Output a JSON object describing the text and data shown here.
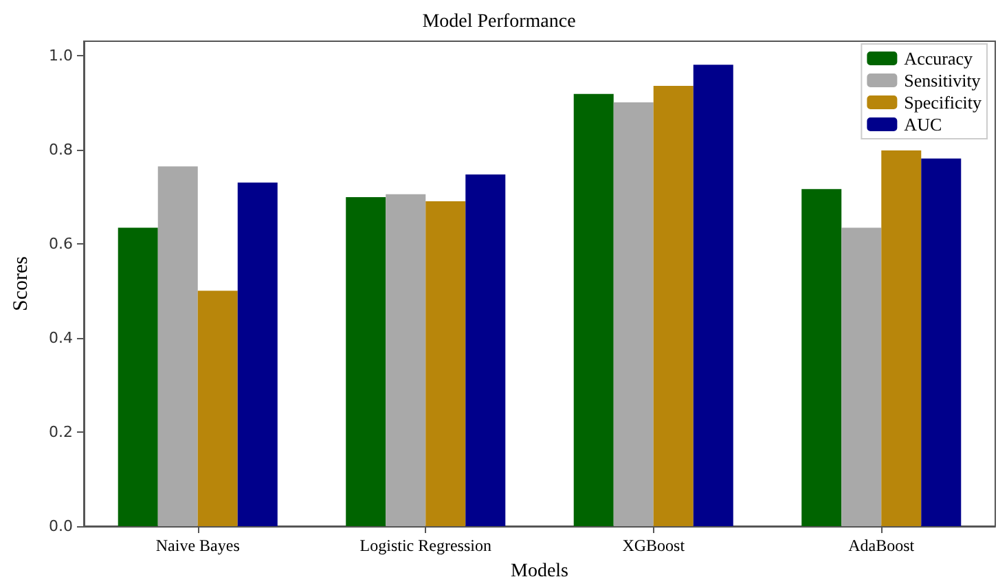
{
  "chart_data": {
    "type": "bar",
    "title": "Model Performance",
    "xlabel": "Models",
    "ylabel": "Scores",
    "categories": [
      "Naive Bayes",
      "Logistic Regression",
      "XGBoost",
      "AdaBoost"
    ],
    "series": [
      {
        "name": "Accuracy",
        "color": "#006400",
        "values": [
          0.634,
          0.699,
          0.918,
          0.716
        ]
      },
      {
        "name": "Sensitivity",
        "color": "#a9a9a9",
        "values": [
          0.764,
          0.705,
          0.9,
          0.634
        ]
      },
      {
        "name": "Specificity",
        "color": "#b8860b",
        "values": [
          0.5,
          0.69,
          0.935,
          0.798
        ]
      },
      {
        "name": "AUC",
        "color": "#00008b",
        "values": [
          0.73,
          0.747,
          0.98,
          0.781
        ]
      }
    ],
    "ylim": [
      0,
      1.03
    ],
    "yticks": [
      {
        "value": 0,
        "label": "0.0"
      },
      0.2,
      0.4,
      0.6,
      0.8,
      {
        "value": 1,
        "label": "1.0"
      }
    ],
    "grid": false,
    "legend": "top right"
  }
}
